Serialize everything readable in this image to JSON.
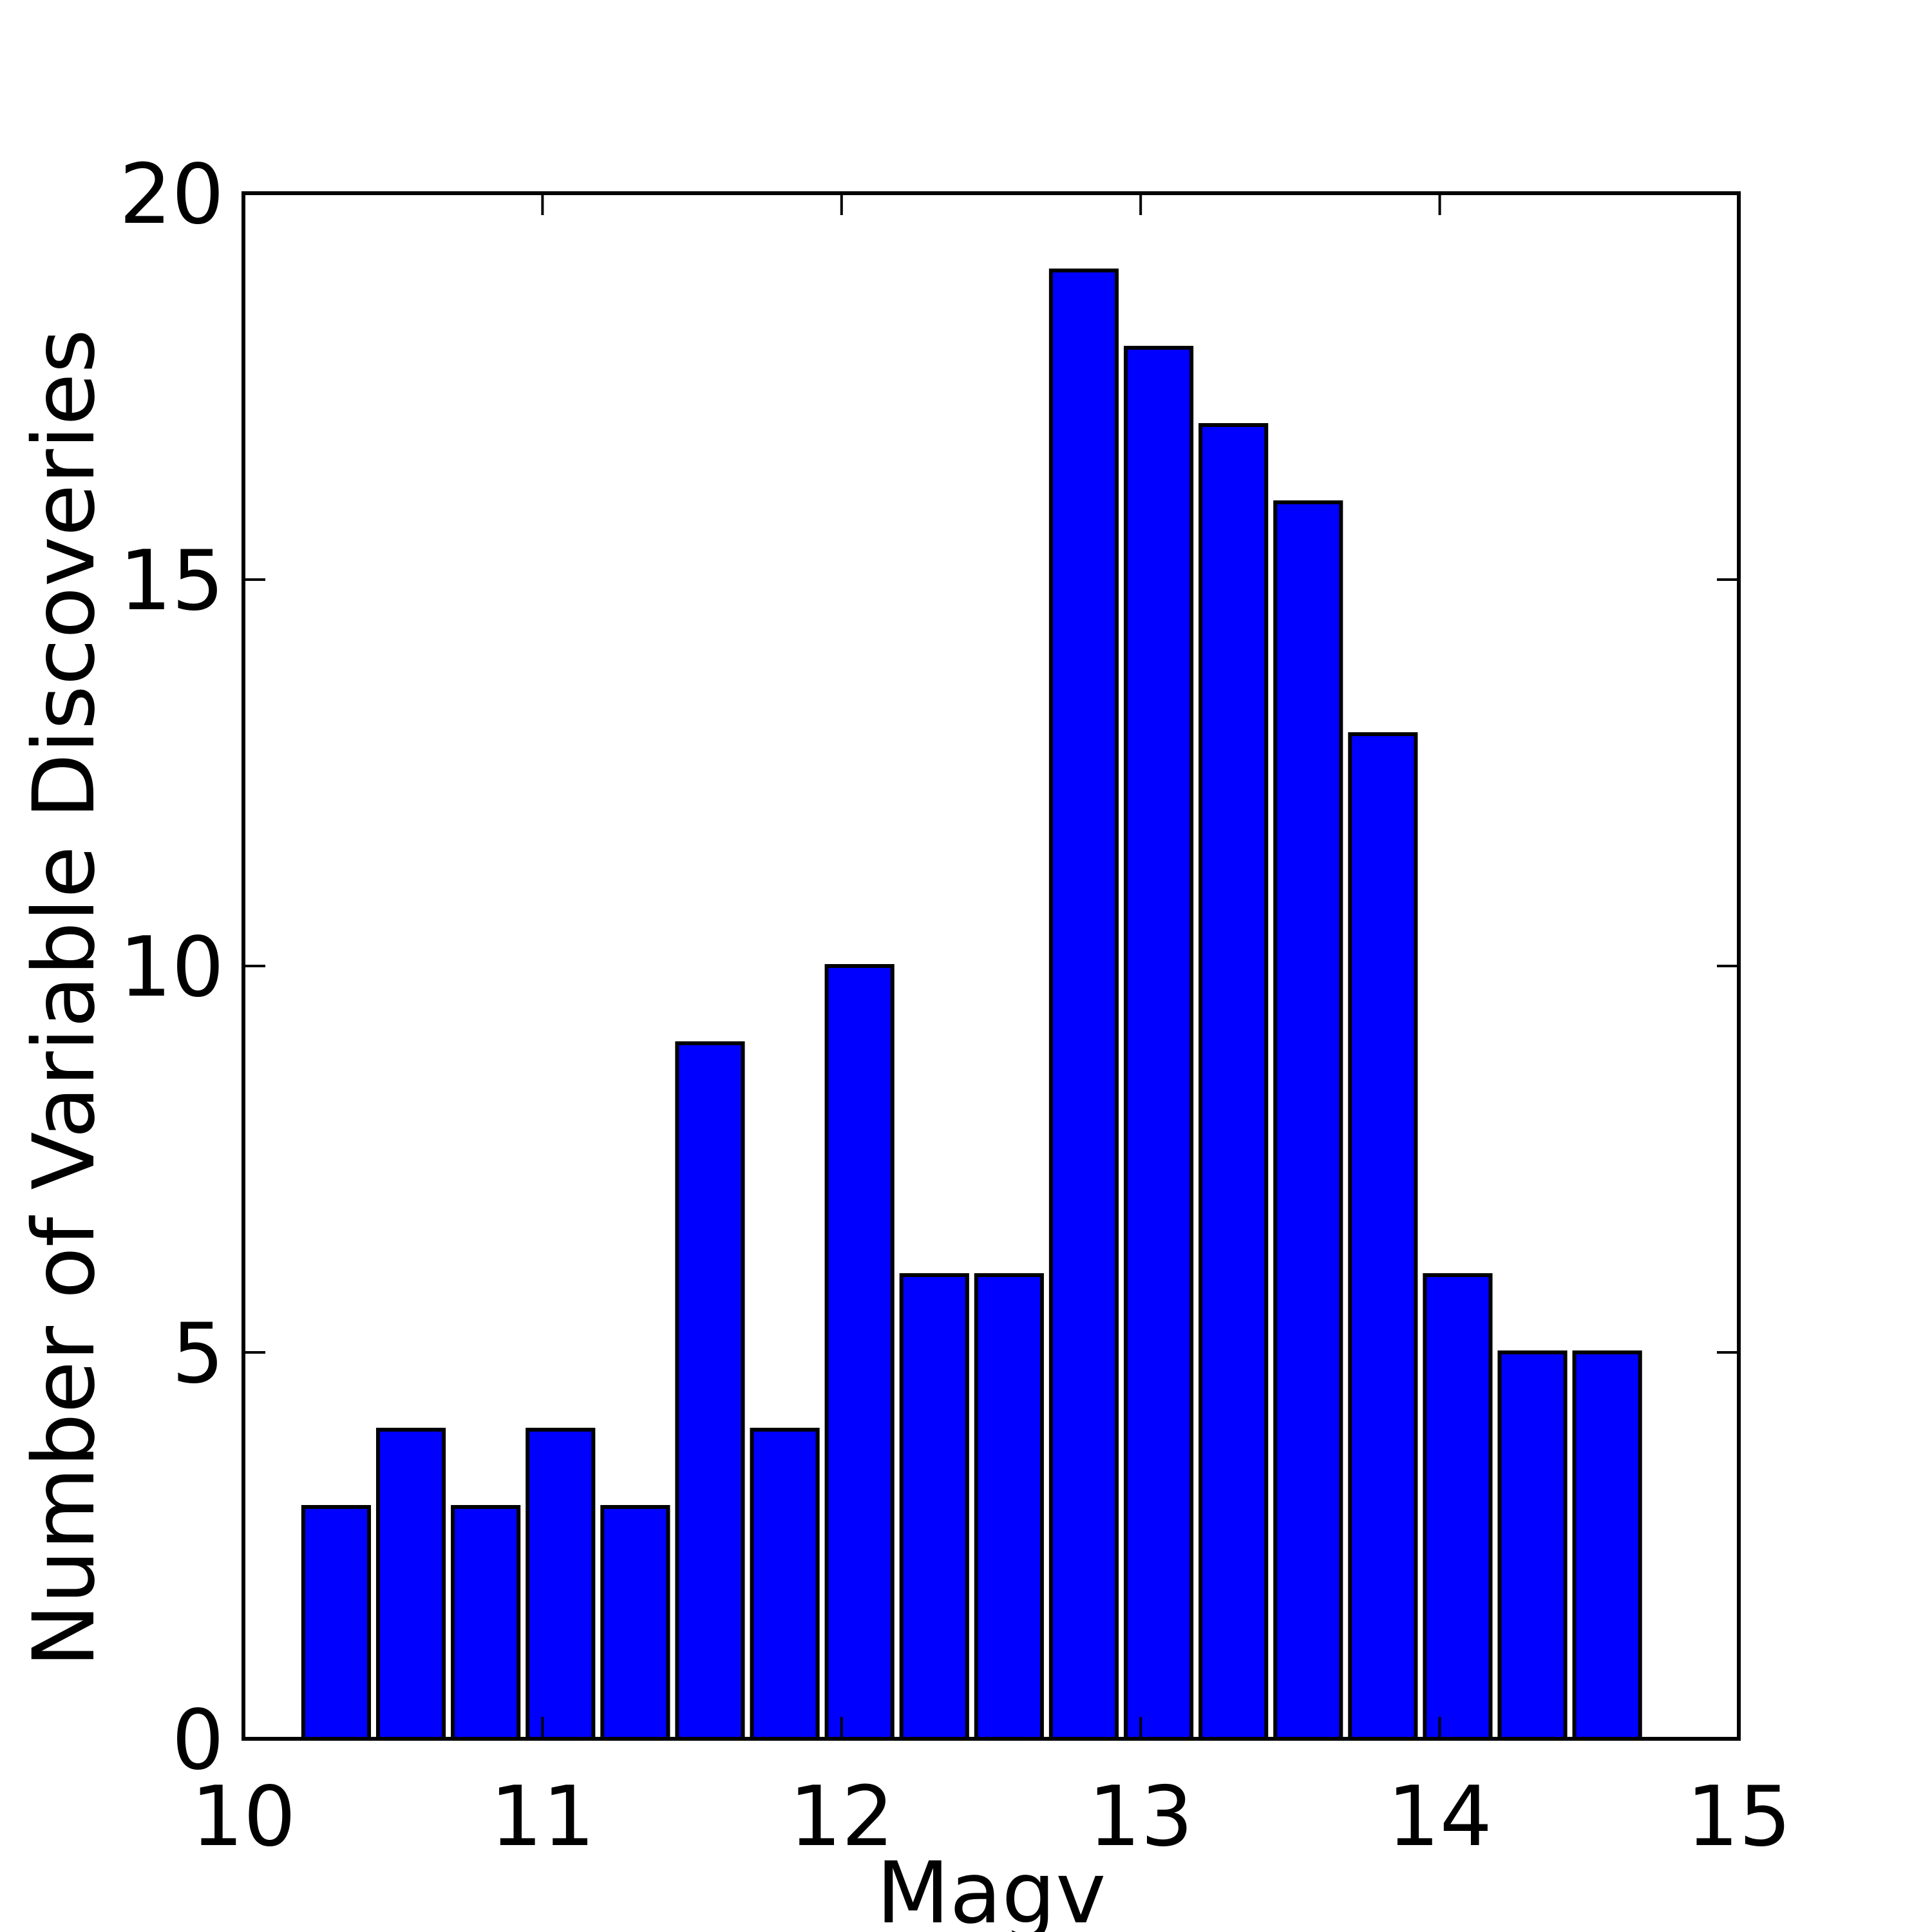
{
  "chart_data": {
    "type": "bar",
    "xlabel": "Magv",
    "ylabel": "Number of Variable Discoveries",
    "xlim": [
      10,
      15
    ],
    "ylim": [
      0,
      20
    ],
    "xticks": [
      10,
      11,
      12,
      13,
      14,
      15
    ],
    "yticks": [
      0,
      5,
      10,
      15,
      20
    ],
    "bin_width": 0.25,
    "bar_color": "#0000ff",
    "edge_color": "#000000",
    "grid": false,
    "bars": [
      {
        "x": 10.2,
        "value": 3
      },
      {
        "x": 10.45,
        "value": 4
      },
      {
        "x": 10.7,
        "value": 3
      },
      {
        "x": 10.95,
        "value": 4
      },
      {
        "x": 11.2,
        "value": 3
      },
      {
        "x": 11.45,
        "value": 9
      },
      {
        "x": 11.7,
        "value": 4
      },
      {
        "x": 11.95,
        "value": 10
      },
      {
        "x": 12.2,
        "value": 6
      },
      {
        "x": 12.45,
        "value": 6
      },
      {
        "x": 12.7,
        "value": 19
      },
      {
        "x": 12.95,
        "value": 18
      },
      {
        "x": 13.2,
        "value": 17
      },
      {
        "x": 13.45,
        "value": 16
      },
      {
        "x": 13.7,
        "value": 13
      },
      {
        "x": 13.95,
        "value": 6
      },
      {
        "x": 14.2,
        "value": 5
      },
      {
        "x": 14.45,
        "value": 5
      }
    ]
  }
}
